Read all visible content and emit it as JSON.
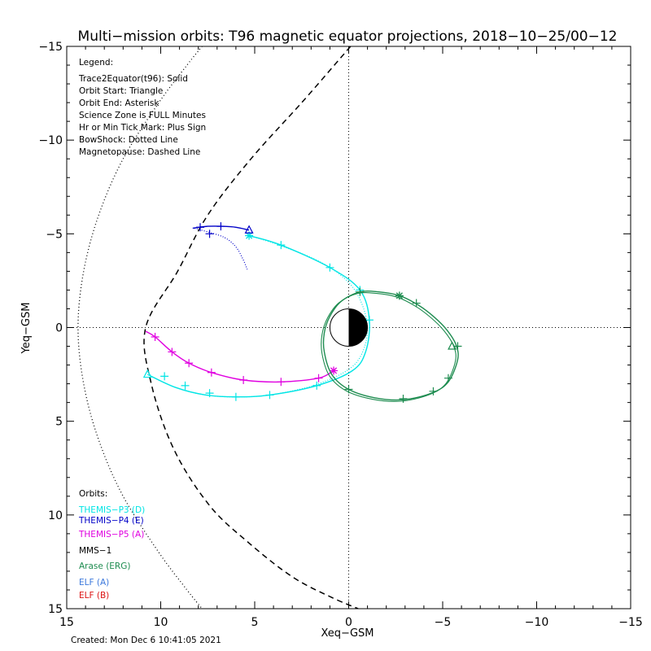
{
  "chart_data": {
    "type": "line",
    "title": "Multi−mission orbits: T96 magnetic equator projections, 2018−10−25/00−12",
    "xlabel": "Xeq−GSM",
    "ylabel": "Yeq−GSM",
    "xlim": [
      15,
      -15
    ],
    "ylim": [
      -15,
      15
    ],
    "x_ticks": [
      15,
      10,
      5,
      0,
      -5,
      -10,
      -15
    ],
    "x_tick_labels": [
      "15",
      "10",
      "5",
      "0",
      "−5",
      "−10",
      "−15"
    ],
    "y_ticks": [
      -15,
      -10,
      -5,
      0,
      5,
      10,
      15
    ],
    "y_tick_labels": [
      "−15",
      "−10",
      "−5",
      "0",
      "5",
      "10",
      "15"
    ],
    "grid": false,
    "legend_placement": "top-left",
    "legend": {
      "title": "Legend:",
      "lines": [
        "Trace2Equator(t96): Solid",
        "Orbit Start: Triangle",
        "Orbit End: Asterisk",
        "Science Zone is FULL Minutes",
        "Hr or Min Tick Mark: Plus Sign",
        "BowShock: Dotted Line",
        "Magnetopause: Dashed Line"
      ]
    },
    "orbits_legend": {
      "title": "Orbits:",
      "entries": [
        {
          "label": "THEMIS−P3 (D)",
          "color": "#00e5e5"
        },
        {
          "label": "THEMIS−P4 (E)",
          "color": "#0000c8"
        },
        {
          "label": "THEMIS−P5 (A)",
          "color": "#e000e0"
        },
        {
          "label": "MMS−1",
          "color": "#000000"
        },
        {
          "label": "Arase (ERG)",
          "color": "#1e8c50"
        },
        {
          "label": "ELF (A)",
          "color": "#3c78dc"
        },
        {
          "label": "ELF (B)",
          "color": "#dc1414"
        }
      ]
    },
    "series": [
      {
        "name": "THEMIS−P3 (D)",
        "color": "#00e5e5",
        "points": [
          [
            5.3,
            -4.9
          ],
          [
            3.6,
            -4.4
          ],
          [
            1.0,
            -3.2
          ],
          [
            -0.6,
            -2.0
          ],
          [
            -1.1,
            -0.4
          ],
          [
            -0.9,
            1.3
          ],
          [
            -0.2,
            2.3
          ],
          [
            1.7,
            3.1
          ],
          [
            4.2,
            3.6
          ],
          [
            6.0,
            3.7
          ],
          [
            7.6,
            3.6
          ],
          [
            9.2,
            3.2
          ],
          [
            10.7,
            2.5
          ]
        ],
        "ticks": [
          [
            3.6,
            -4.4
          ],
          [
            1.0,
            -3.2
          ],
          [
            -0.6,
            -2.0
          ],
          [
            -1.1,
            -0.4
          ],
          [
            1.7,
            3.1
          ],
          [
            4.2,
            3.6
          ],
          [
            6.0,
            3.7
          ],
          [
            7.4,
            3.5
          ],
          [
            8.7,
            3.1
          ],
          [
            9.8,
            2.6
          ]
        ],
        "trace_points": [
          [
            5.3,
            -4.9
          ],
          [
            4.0,
            -4.5
          ],
          [
            1.7,
            -3.6
          ],
          [
            0.2,
            -2.6
          ],
          [
            -0.6,
            -1.5
          ],
          [
            -1.0,
            0.0
          ],
          [
            -0.7,
            1.4
          ],
          [
            0.1,
            2.3
          ],
          [
            1.9,
            3.1
          ],
          [
            4.2,
            3.6
          ],
          [
            6.0,
            3.7
          ],
          [
            7.6,
            3.6
          ],
          [
            9.2,
            3.2
          ],
          [
            10.7,
            2.5
          ]
        ],
        "start": [
          10.7,
          2.5
        ],
        "end": [
          5.3,
          -4.9
        ]
      },
      {
        "name": "THEMIS−P4 (E)",
        "color": "#0000c8",
        "points": [
          [
            8.3,
            -5.3
          ],
          [
            7.5,
            -5.4
          ],
          [
            6.7,
            -5.4
          ],
          [
            6.0,
            -5.35
          ],
          [
            5.3,
            -5.2
          ]
        ],
        "ticks": [
          [
            7.9,
            -5.35
          ],
          [
            6.8,
            -5.4
          ],
          [
            7.4,
            -5.0
          ]
        ],
        "trace_points": [
          [
            8.2,
            -5.3
          ],
          [
            7.5,
            -5.1
          ],
          [
            6.6,
            -4.8
          ],
          [
            6.0,
            -4.3
          ],
          [
            5.6,
            -3.6
          ],
          [
            5.4,
            -3.1
          ]
        ],
        "start": [
          5.3,
          -5.2
        ],
        "end": null
      },
      {
        "name": "THEMIS−P5 (A)",
        "color": "#e000e0",
        "points": [
          [
            10.8,
            0.2
          ],
          [
            10.3,
            0.5
          ],
          [
            9.4,
            1.3
          ],
          [
            8.5,
            1.9
          ],
          [
            7.3,
            2.4
          ],
          [
            5.6,
            2.8
          ],
          [
            3.6,
            2.9
          ],
          [
            1.6,
            2.7
          ],
          [
            0.8,
            2.3
          ]
        ],
        "ticks": [
          [
            10.3,
            0.5
          ],
          [
            9.4,
            1.3
          ],
          [
            8.5,
            1.9
          ],
          [
            7.3,
            2.4
          ],
          [
            5.6,
            2.8
          ],
          [
            3.6,
            2.9
          ],
          [
            1.6,
            2.7
          ]
        ],
        "trace_points": [],
        "start": null,
        "end": [
          0.8,
          2.3
        ]
      },
      {
        "name": "Arase (ERG)",
        "color": "#1e8c50",
        "points": [
          [
            -5.7,
            0.9
          ],
          [
            -5.8,
            1.7
          ],
          [
            -5.3,
            2.9
          ],
          [
            -4.4,
            3.5
          ],
          [
            -2.9,
            3.85
          ],
          [
            -1.4,
            3.75
          ],
          [
            0.0,
            3.3
          ],
          [
            0.9,
            2.5
          ],
          [
            1.3,
            1.3
          ],
          [
            1.3,
            0.3
          ],
          [
            1.0,
            -0.6
          ],
          [
            0.4,
            -1.4
          ],
          [
            -0.6,
            -1.9
          ],
          [
            -1.6,
            -1.9
          ],
          [
            -2.7,
            -1.7
          ],
          [
            -3.7,
            -1.2
          ],
          [
            -4.5,
            -0.6
          ],
          [
            -5.2,
            0.1
          ],
          [
            -5.7,
            0.9
          ]
        ],
        "ticks": [
          [
            -5.8,
            1.0
          ],
          [
            -5.3,
            2.7
          ],
          [
            -4.5,
            3.4
          ],
          [
            -2.9,
            3.8
          ],
          [
            0.0,
            3.3
          ],
          [
            -0.6,
            -1.9
          ],
          [
            -3.6,
            -1.3
          ]
        ],
        "trace_points": [],
        "start": [
          -5.5,
          1.0
        ],
        "end": [
          -2.7,
          -1.7
        ]
      }
    ],
    "bow_shock": [
      [
        14.4,
        0.0
      ],
      [
        14.1,
        -3.0
      ],
      [
        13.3,
        -6.0
      ],
      [
        12.0,
        -9.0
      ],
      [
        10.1,
        -12.0
      ],
      [
        8.6,
        -14.0
      ],
      [
        7.8,
        -15.0
      ],
      [
        14.1,
        3.0
      ],
      [
        13.3,
        6.0
      ],
      [
        12.0,
        9.0
      ],
      [
        10.1,
        12.0
      ],
      [
        8.6,
        14.0
      ],
      [
        7.8,
        15.0
      ]
    ],
    "magnetopause": [
      [
        -0.1,
        -15.0
      ],
      [
        2.5,
        -12.0
      ],
      [
        5.2,
        -9.0
      ],
      [
        7.5,
        -6.0
      ],
      [
        9.1,
        -3.0
      ],
      [
        10.8,
        0.0
      ],
      [
        10.5,
        3.0
      ],
      [
        9.3,
        6.5
      ],
      [
        7.4,
        9.5
      ],
      [
        5.3,
        11.5
      ],
      [
        3.0,
        13.3
      ],
      [
        0.9,
        14.4
      ],
      [
        -0.5,
        15.0
      ]
    ]
  },
  "footer": {
    "created": "Created: Mon Dec  6 10:41:05 2021"
  }
}
